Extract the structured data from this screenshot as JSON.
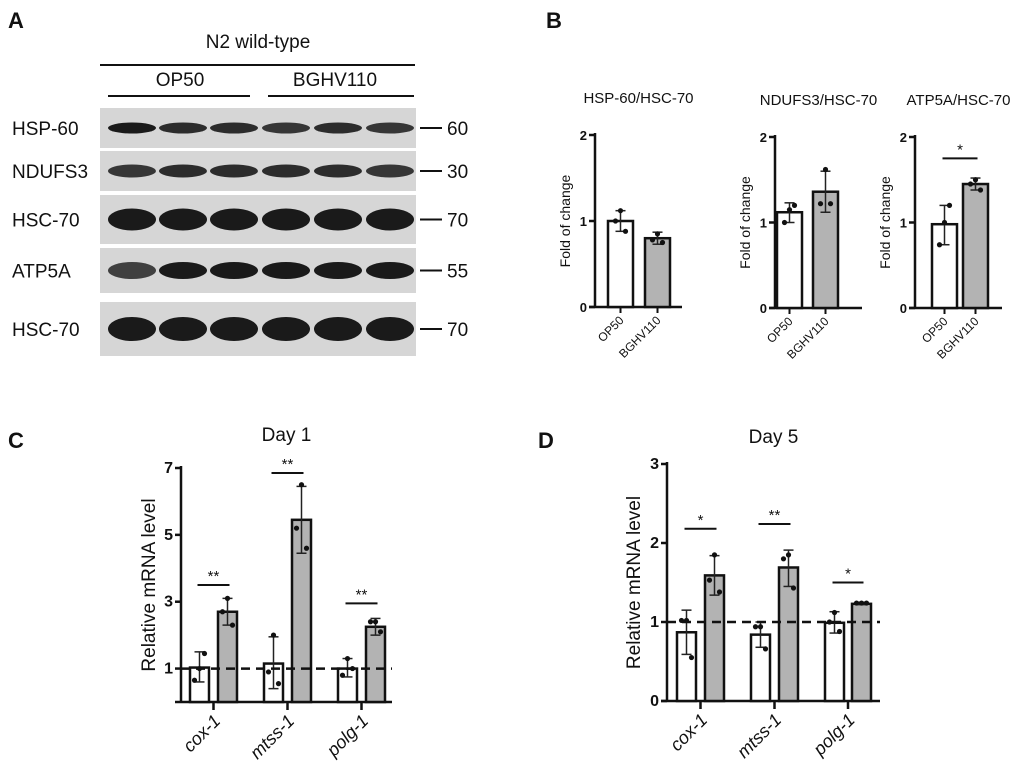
{
  "panel_letters": [
    "A",
    "B",
    "C",
    "D"
  ],
  "blot": {
    "strain": "N2 wild-type",
    "groups": [
      "OP50",
      "BGHV110"
    ],
    "rows": [
      {
        "label": "HSP-60",
        "mw": "60"
      },
      {
        "label": "NDUFS3",
        "mw": "30"
      },
      {
        "label": "HSC-70",
        "mw": "70"
      },
      {
        "label": "ATP5A",
        "mw": "55"
      },
      {
        "label": "HSC-70",
        "mw": "70"
      }
    ]
  },
  "colors": {
    "bar_control": "#ffffff",
    "bar_treated": "#b3b3b3",
    "axis": "#111111",
    "blot_bg": "#d6d6d6",
    "band": "#1a1a1a"
  },
  "chart_data": [
    {
      "id": "B1",
      "type": "bar",
      "title": "HSP-60/HSC-70",
      "ylabel": "Fold of change",
      "ylim": [
        0,
        2
      ],
      "yticks": [
        0,
        1,
        2
      ],
      "categories": [
        "OP50",
        "BGHV110"
      ],
      "values": [
        1.0,
        0.8
      ],
      "points": [
        [
          1.12,
          1.0,
          0.88
        ],
        [
          0.85,
          0.78,
          0.75
        ]
      ],
      "errors": [
        [
          0.88,
          1.12
        ],
        [
          0.73,
          0.87
        ]
      ],
      "significance": []
    },
    {
      "id": "B2",
      "type": "bar",
      "title": "NDUFS3/HSC-70",
      "ylabel": "Fold of change",
      "ylim": [
        0,
        2
      ],
      "yticks": [
        0,
        1,
        2
      ],
      "categories": [
        "OP50",
        "BGHV110"
      ],
      "values": [
        1.12,
        1.36
      ],
      "points": [
        [
          1.15,
          1.0,
          1.2
        ],
        [
          1.62,
          1.22,
          1.22
        ]
      ],
      "errors": [
        [
          1.0,
          1.23
        ],
        [
          1.12,
          1.6
        ]
      ],
      "significance": []
    },
    {
      "id": "B3",
      "type": "bar",
      "title": "ATP5A/HSC-70",
      "ylabel": "Fold of change",
      "ylim": [
        0,
        2
      ],
      "yticks": [
        0,
        1,
        2
      ],
      "categories": [
        "OP50",
        "BGHV110"
      ],
      "values": [
        0.98,
        1.45
      ],
      "points": [
        [
          1.0,
          0.74,
          1.2
        ],
        [
          1.5,
          1.45,
          1.38
        ]
      ],
      "errors": [
        [
          0.74,
          1.2
        ],
        [
          1.38,
          1.52
        ]
      ],
      "significance": [
        {
          "label": "*",
          "y": 1.75
        }
      ]
    },
    {
      "id": "C",
      "type": "bar",
      "title": "Day 1",
      "ylabel": "Relative mRNA level",
      "ylim": [
        0,
        7
      ],
      "yticks": [
        1,
        3,
        5,
        7
      ],
      "reference_line": 1,
      "categories": [
        "cox-1",
        "mtss-1",
        "polg-1"
      ],
      "series": [
        {
          "name": "OP50",
          "values": [
            1.03,
            1.15,
            1.0
          ],
          "points": [
            [
              1.0,
              0.65,
              1.45
            ],
            [
              2.0,
              0.9,
              0.55
            ],
            [
              1.3,
              0.8,
              1.0
            ]
          ],
          "errors": [
            [
              0.6,
              1.5
            ],
            [
              0.4,
              1.95
            ],
            [
              0.75,
              1.3
            ]
          ]
        },
        {
          "name": "BGHV110",
          "values": [
            2.7,
            5.45,
            2.25
          ],
          "points": [
            [
              3.1,
              2.7,
              2.3
            ],
            [
              6.5,
              5.2,
              4.6
            ],
            [
              2.4,
              2.4,
              2.1
            ]
          ],
          "errors": [
            [
              2.3,
              3.1
            ],
            [
              4.45,
              6.45
            ],
            [
              2.0,
              2.5
            ]
          ]
        }
      ],
      "significance": [
        {
          "label": "**",
          "y": 3.5
        },
        {
          "label": "**",
          "y": 6.85
        },
        {
          "label": "**",
          "y": 2.95
        }
      ]
    },
    {
      "id": "D",
      "type": "bar",
      "title": "Day 5",
      "ylabel": "Relative mRNA level",
      "ylim": [
        0,
        3
      ],
      "yticks": [
        0,
        1,
        2,
        3
      ],
      "reference_line": 1,
      "categories": [
        "cox-1",
        "mtss-1",
        "polg-1"
      ],
      "series": [
        {
          "name": "OP50",
          "values": [
            0.87,
            0.84,
            0.99
          ],
          "points": [
            [
              1.02,
              1.02,
              0.55
            ],
            [
              0.94,
              0.94,
              0.66
            ],
            [
              1.12,
              1.0,
              0.88
            ]
          ],
          "errors": [
            [
              0.59,
              1.15
            ],
            [
              0.68,
              1.0
            ],
            [
              0.86,
              1.13
            ]
          ]
        },
        {
          "name": "BGHV110",
          "values": [
            1.59,
            1.69,
            1.23
          ],
          "points": [
            [
              1.85,
              1.53,
              1.38
            ],
            [
              1.85,
              1.8,
              1.43
            ],
            [
              1.24,
              1.24,
              1.24
            ]
          ],
          "errors": [
            [
              1.34,
              1.84
            ],
            [
              1.45,
              1.91
            ],
            [
              1.22,
              1.25
            ]
          ]
        }
      ],
      "significance": [
        {
          "label": "*",
          "y": 2.18
        },
        {
          "label": "**",
          "y": 2.24
        },
        {
          "label": "*",
          "y": 1.5
        }
      ]
    }
  ]
}
